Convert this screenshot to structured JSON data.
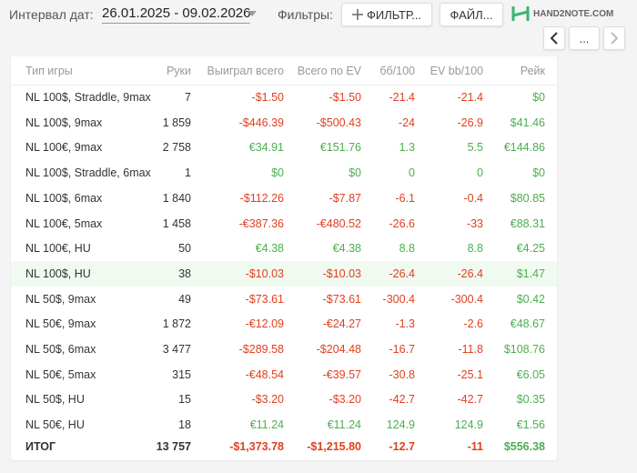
{
  "header": {
    "date_label": "Интервал дат:",
    "date_range": "26.01.2025 - 09.02.2026",
    "filters_label": "Фильтры:",
    "filter_button": "ФИЛЬТР...",
    "file_button": "ФАЙЛ...",
    "logo": "HAND2NOTE.COM",
    "more_button": "..."
  },
  "table": {
    "columns": [
      "Тип игры",
      "Руки",
      "Выиграл всего",
      "Всего по EV",
      "бб/100",
      "EV bb/100",
      "Рейк"
    ],
    "rows": [
      [
        "NL 100$, Straddle, 9max",
        "7",
        "-$1.50",
        "-$1.50",
        "-21.4",
        "-21.4",
        "$0"
      ],
      [
        "NL 100$, 9max",
        "1 859",
        "-$446.39",
        "-$500.43",
        "-24",
        "-26.9",
        "$41.46"
      ],
      [
        "NL 100€, 9max",
        "2 758",
        "€34.91",
        "€151.76",
        "1.3",
        "5.5",
        "€144.86"
      ],
      [
        "NL 100$, Straddle, 6max",
        "1",
        "$0",
        "$0",
        "0",
        "0",
        "$0"
      ],
      [
        "NL 100$, 6max",
        "1 840",
        "-$112.26",
        "-$7.87",
        "-6.1",
        "-0.4",
        "$80.85"
      ],
      [
        "NL 100€, 5max",
        "1 458",
        "-€387.36",
        "-€480.52",
        "-26.6",
        "-33",
        "€88.31"
      ],
      [
        "NL 100€, HU",
        "50",
        "€4.38",
        "€4.38",
        "8.8",
        "8.8",
        "€4.25"
      ],
      [
        "NL 100$, HU",
        "38",
        "-$10.03",
        "-$10.03",
        "-26.4",
        "-26.4",
        "$1.47"
      ],
      [
        "NL 50$, 9max",
        "49",
        "-$73.61",
        "-$73.61",
        "-300.4",
        "-300.4",
        "$0.42"
      ],
      [
        "NL 50€, 9max",
        "1 872",
        "-€12.09",
        "-€24.27",
        "-1.3",
        "-2.6",
        "€48.67"
      ],
      [
        "NL 50$, 6max",
        "3 477",
        "-$289.58",
        "-$204.48",
        "-16.7",
        "-11.8",
        "$108.76"
      ],
      [
        "NL 50€, 5max",
        "315",
        "-€48.54",
        "-€39.57",
        "-30.8",
        "-25.1",
        "€6.05"
      ],
      [
        "NL 50$, HU",
        "15",
        "-$3.20",
        "-$3.20",
        "-42.7",
        "-42.7",
        "$0.35"
      ],
      [
        "NL 50€, HU",
        "18",
        "€11.24",
        "€11.24",
        "124.9",
        "124.9",
        "€1.56"
      ]
    ],
    "total": [
      "ИТОГ",
      "13 757",
      "-$1,373.78",
      "-$1,215.80",
      "-12.7",
      "-11",
      "$556.38"
    ]
  }
}
